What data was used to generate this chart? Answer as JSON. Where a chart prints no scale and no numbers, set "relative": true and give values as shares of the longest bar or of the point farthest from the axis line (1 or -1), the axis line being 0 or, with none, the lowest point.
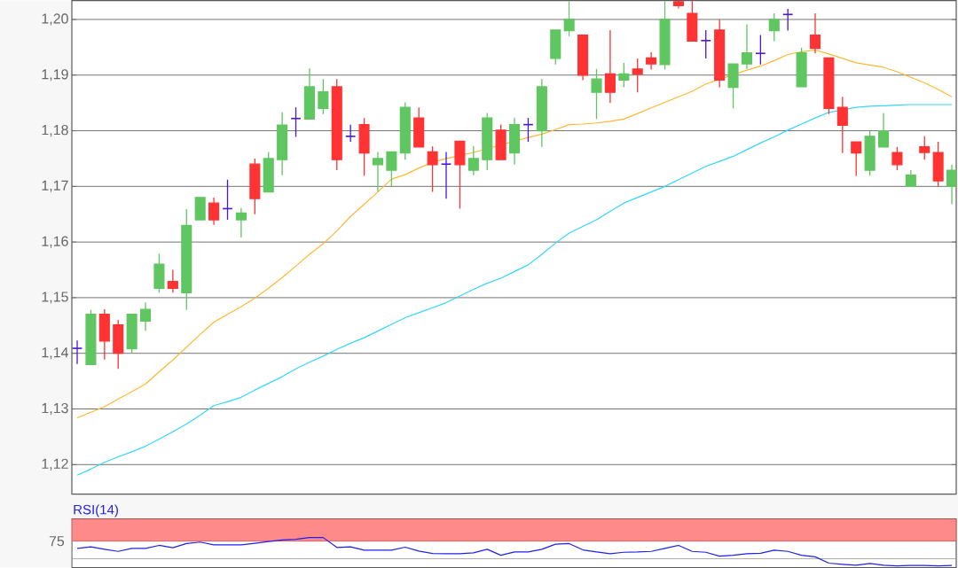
{
  "chart_data": [
    {
      "type": "candlestick",
      "categories": [
        null,
        null,
        null,
        null,
        null,
        null,
        null,
        null,
        null,
        null,
        null,
        null,
        null,
        null,
        null,
        null,
        null,
        null,
        null,
        null,
        null,
        null,
        null,
        null,
        null,
        null,
        null,
        null,
        null,
        null,
        null,
        null,
        null,
        null,
        null,
        null,
        null,
        null,
        null,
        null,
        null,
        null,
        null,
        null,
        null,
        null,
        null,
        null,
        null,
        null,
        null,
        null,
        null,
        null,
        null,
        null,
        null,
        null,
        null,
        null,
        null,
        null,
        null,
        null,
        null
      ],
      "ohlc": [
        [
          1.1409,
          1.1423,
          1.1381,
          1.1409
        ],
        [
          1.138,
          1.1478,
          1.138,
          1.147
        ],
        [
          1.147,
          1.1479,
          1.1389,
          1.1422
        ],
        [
          1.1451,
          1.146,
          1.1372,
          1.14
        ],
        [
          1.1408,
          1.147,
          1.14,
          1.147
        ],
        [
          1.1458,
          1.1491,
          1.144,
          1.1479
        ],
        [
          1.1517,
          1.1579,
          1.1509,
          1.156
        ],
        [
          1.1529,
          1.155,
          1.1509,
          1.1517
        ],
        [
          1.1509,
          1.1659,
          1.1478,
          1.163
        ],
        [
          1.164,
          1.168,
          1.164,
          1.168
        ],
        [
          1.167,
          1.168,
          1.1631,
          1.164
        ],
        [
          1.166,
          1.1712,
          1.164,
          1.166
        ],
        [
          1.164,
          1.1661,
          1.1608,
          1.1652
        ],
        [
          1.174,
          1.175,
          1.165,
          1.1678
        ],
        [
          1.169,
          1.1762,
          1.169,
          1.175
        ],
        [
          1.1748,
          1.1833,
          1.172,
          1.181
        ],
        [
          1.1822,
          1.1842,
          1.1789,
          1.1822
        ],
        [
          1.1821,
          1.1912,
          1.1821,
          1.1879
        ],
        [
          1.184,
          1.1893,
          1.183,
          1.187
        ],
        [
          1.1879,
          1.1893,
          1.1729,
          1.1748
        ],
        [
          1.179,
          1.1811,
          1.178,
          1.179
        ],
        [
          1.1811,
          1.1823,
          1.1719,
          1.176
        ],
        [
          1.1739,
          1.1762,
          1.169,
          1.175
        ],
        [
          1.1729,
          1.1762,
          1.17,
          1.1762
        ],
        [
          1.176,
          1.1851,
          1.1748,
          1.1842
        ],
        [
          1.1823,
          1.1842,
          1.1771,
          1.1771
        ],
        [
          1.1762,
          1.1772,
          1.169,
          1.1739
        ],
        [
          1.174,
          1.1762,
          1.1678,
          1.174
        ],
        [
          1.1781,
          1.1781,
          1.166,
          1.1739
        ],
        [
          1.1729,
          1.1772,
          1.172,
          1.175
        ],
        [
          1.1748,
          1.1832,
          1.1729,
          1.1823
        ],
        [
          1.1801,
          1.1811,
          1.1748,
          1.1748
        ],
        [
          1.176,
          1.1823,
          1.1739,
          1.1811
        ],
        [
          1.1811,
          1.1823,
          1.178,
          1.1811
        ],
        [
          1.18,
          1.1893,
          1.1771,
          1.1879
        ],
        [
          1.193,
          1.1981,
          1.1919,
          1.1981
        ],
        [
          1.198,
          1.2033,
          1.197,
          1.2
        ],
        [
          1.1972,
          1.1972,
          1.1891,
          1.19
        ],
        [
          1.1869,
          1.1911,
          1.1821,
          1.1893
        ],
        [
          1.1902,
          1.1981,
          1.185,
          1.1869
        ],
        [
          1.1891,
          1.1922,
          1.1878,
          1.1902
        ],
        [
          1.1911,
          1.193,
          1.1869,
          1.1902
        ],
        [
          1.1931,
          1.1941,
          1.191,
          1.192
        ],
        [
          1.1919,
          1.2033,
          1.191,
          1.2
        ],
        [
          1.2032,
          1.2034,
          1.202,
          1.2025
        ],
        [
          1.2011,
          1.2033,
          1.1961,
          1.1961
        ],
        [
          1.1962,
          1.1981,
          1.193,
          1.1962
        ],
        [
          1.1981,
          1.2,
          1.1878,
          1.1891
        ],
        [
          1.1878,
          1.192,
          1.184,
          1.192
        ],
        [
          1.192,
          1.1991,
          1.1911,
          1.194
        ],
        [
          1.1939,
          1.1972,
          1.1919,
          1.1939
        ],
        [
          1.198,
          1.2011,
          1.1961,
          1.2
        ],
        [
          1.2009,
          1.2019,
          1.198,
          1.2009
        ],
        [
          1.1879,
          1.1949,
          1.1879,
          1.194
        ],
        [
          1.1972,
          1.2011,
          1.1939,
          1.1948
        ],
        [
          1.1931,
          1.1931,
          1.183,
          1.184
        ],
        [
          1.1842,
          1.1861,
          1.176,
          1.181
        ],
        [
          1.178,
          1.178,
          1.1719,
          1.176
        ],
        [
          1.1729,
          1.18,
          1.1719,
          1.179
        ],
        [
          1.1771,
          1.1832,
          1.1771,
          1.18
        ],
        [
          1.1761,
          1.1771,
          1.1729,
          1.1739
        ],
        [
          1.17,
          1.1729,
          1.17,
          1.172
        ],
        [
          1.1771,
          1.179,
          1.1748,
          1.1761
        ],
        [
          1.1761,
          1.178,
          1.17,
          1.171
        ],
        [
          1.17,
          1.1739,
          1.1668,
          1.1729
        ]
      ],
      "colors": [
        "#4a16d6",
        "#5fc661",
        "#ff3333",
        "#ff3333",
        "#5fc661",
        "#5fc661",
        "#5fc661",
        "#ff3333",
        "#5fc661",
        "#5fc661",
        "#ff3333",
        "#4a16d6",
        "#5fc661",
        "#ff3333",
        "#5fc661",
        "#5fc661",
        "#4a16d6",
        "#5fc661",
        "#5fc661",
        "#ff3333",
        "#4a16d6",
        "#ff3333",
        "#5fc661",
        "#5fc661",
        "#5fc661",
        "#ff3333",
        "#ff3333",
        "#4a16d6",
        "#ff3333",
        "#5fc661",
        "#5fc661",
        "#ff3333",
        "#5fc661",
        "#4a16d6",
        "#5fc661",
        "#5fc661",
        "#5fc661",
        "#ff3333",
        "#5fc661",
        "#ff3333",
        "#5fc661",
        "#ff3333",
        "#ff3333",
        "#5fc661",
        "#ff3333",
        "#ff3333",
        "#4a16d6",
        "#ff3333",
        "#5fc661",
        "#5fc661",
        "#4a16d6",
        "#5fc661",
        "#4a16d6",
        "#5fc661",
        "#ff3333",
        "#ff3333",
        "#ff3333",
        "#ff3333",
        "#5fc661",
        "#5fc661",
        "#ff3333",
        "#5fc661",
        "#ff3333",
        "#ff3333",
        "#5fc661"
      ],
      "series": [
        {
          "type": "line",
          "color": "#ffb833",
          "values": [
            1.1284,
            1.1294,
            1.1304,
            1.1318,
            1.1331,
            1.1345,
            1.1367,
            1.1388,
            1.1411,
            1.1434,
            1.1456,
            1.147,
            1.1484,
            1.1499,
            1.1517,
            1.1536,
            1.1557,
            1.1578,
            1.1597,
            1.162,
            1.1646,
            1.1668,
            1.169,
            1.1713,
            1.1721,
            1.1733,
            1.1743,
            1.175,
            null,
            1.1761,
            null,
            null,
            null,
            1.1788,
            1.1794,
            1.1802,
            1.1811,
            1.1812,
            1.1814,
            1.1817,
            1.1821,
            1.1831,
            1.1841,
            1.1851,
            1.1861,
            1.1871,
            1.1884,
            null,
            null,
            1.1909,
            1.1916,
            1.1926,
            1.1937,
            1.1942,
            1.1945,
            1.1938,
            1.193,
            1.1922,
            1.1918,
            1.1914,
            1.1906,
            1.1896,
            1.1886,
            1.1874,
            1.1861
          ]
        },
        {
          "type": "line",
          "color": "#33d6ff",
          "values": [
            1.1181,
            1.1192,
            1.1204,
            1.1214,
            1.1223,
            1.1233,
            1.1246,
            1.1259,
            1.1273,
            1.1289,
            1.1306,
            1.1313,
            1.1321,
            1.1334,
            1.1346,
            1.1358,
            1.1372,
            1.1384,
            1.1395,
            1.1407,
            1.1418,
            1.1428,
            1.144,
            1.1452,
            1.1464,
            1.1473,
            1.1482,
            1.1491,
            1.1503,
            1.1515,
            1.1526,
            1.1535,
            1.1547,
            1.1559,
            1.1578,
            1.1598,
            1.1616,
            1.1628,
            1.164,
            1.1655,
            1.167,
            1.168,
            1.169,
            1.17,
            1.1712,
            1.1724,
            1.1736,
            1.1745,
            1.1754,
            1.1766,
            1.1778,
            1.1789,
            1.1801,
            1.1812,
            1.1823,
            1.1833,
            null,
            1.1842,
            1.1844,
            1.1845,
            1.1846,
            1.1847,
            1.1847,
            1.1847,
            1.1847
          ]
        }
      ],
      "ylim": [
        1.1147,
        1.2034
      ],
      "yticks": [
        {
          "value": 1.12,
          "label": "1,12"
        },
        {
          "value": 1.13,
          "label": "1,13"
        },
        {
          "value": 1.14,
          "label": "1,14"
        },
        {
          "value": 1.15,
          "label": "1,15"
        },
        {
          "value": 1.16,
          "label": "1,16"
        },
        {
          "value": 1.17,
          "label": "1,17"
        },
        {
          "value": 1.18,
          "label": "1,18"
        },
        {
          "value": 1.19,
          "label": "1,19"
        },
        {
          "value": 1.2,
          "label": "1,20"
        }
      ],
      "grid": "y",
      "tick_labels": "y"
    },
    {
      "type": "line",
      "title": "RSI(14)",
      "relative": true,
      "categories": [
        null,
        null,
        null,
        null,
        null,
        null,
        null,
        null,
        null,
        null,
        null,
        null,
        null,
        null,
        null,
        null,
        null,
        null,
        null,
        null,
        null,
        null,
        null,
        null,
        null,
        null,
        null,
        null,
        null,
        null,
        null,
        null,
        null,
        null,
        null,
        null,
        null,
        null,
        null,
        null,
        null,
        null,
        null,
        null,
        null,
        null,
        null,
        null,
        null,
        null,
        null,
        null,
        null,
        null,
        null,
        null,
        null,
        null,
        null,
        null,
        null,
        null,
        null,
        null,
        null
      ],
      "series": [
        {
          "color": "#2020ee",
          "values": [
            0.64,
            0.69,
            0.61,
            0.54,
            0.64,
            0.64,
            0.74,
            0.66,
            0.8,
            0.85,
            0.76,
            0.76,
            0.76,
            0.81,
            0.87,
            0.92,
            0.94,
            1,
            1,
            0.67,
            0.69,
            0.58,
            0.58,
            0.58,
            0.68,
            0.55,
            0.47,
            0.46,
            0.46,
            0.49,
            0.61,
            0.41,
            0.52,
            0.52,
            0.61,
            0.78,
            0.8,
            0.59,
            0.52,
            0.46,
            0.51,
            0.52,
            0.54,
            0.64,
            0.74,
            0.54,
            0.51,
            0.38,
            0.41,
            0.46,
            0.48,
            0.58,
            0.54,
            0.41,
            0.36,
            0.15,
            0.11,
            0.08,
            0.14,
            0.08,
            0.06,
            0.07,
            0.07,
            0.06,
            0.07
          ]
        }
      ],
      "bands": [
        {
          "axis": "y",
          "from": 0.88,
          "to": 1.62,
          "color": "#ff8a8a"
        }
      ],
      "ref_lines": [
        {
          "axis": "y",
          "value": 0.29,
          "color": "#999999"
        }
      ],
      "annotations": [
        "75"
      ]
    }
  ]
}
